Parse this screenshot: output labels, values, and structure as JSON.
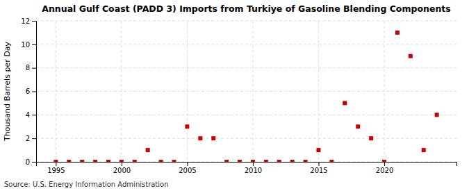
{
  "chart_data": {
    "type": "scatter",
    "title": "Annual Gulf Coast (PADD 3) Imports from Turkiye of Gasoline Blending Components",
    "ylabel": "Thousand Barrels per Day",
    "annotation": "Source: U.S. Energy Information Administration",
    "x": [
      1995,
      1996,
      1997,
      1998,
      1999,
      2000,
      2001,
      2002,
      2003,
      2004,
      2005,
      2006,
      2007,
      2008,
      2009,
      2010,
      2011,
      2012,
      2013,
      2014,
      2015,
      2016,
      2017,
      2018,
      2019,
      2020,
      2021,
      2022,
      2023,
      2024
    ],
    "values": [
      0,
      0,
      0,
      0,
      0,
      0,
      0,
      1,
      0,
      0,
      3,
      2,
      2,
      0,
      0,
      0,
      0,
      0,
      0,
      0,
      1,
      0,
      5,
      3,
      2,
      0,
      11,
      9,
      1,
      4
    ],
    "color": "#cc0000",
    "marker": "square",
    "xlim": [
      1993.5,
      2025.5
    ],
    "ylim": [
      0,
      12
    ],
    "xticks": [
      1995,
      2000,
      2005,
      2010,
      2015,
      2020
    ],
    "yticks": [
      0,
      2,
      4,
      6,
      8,
      10,
      12
    ],
    "grid": true
  }
}
